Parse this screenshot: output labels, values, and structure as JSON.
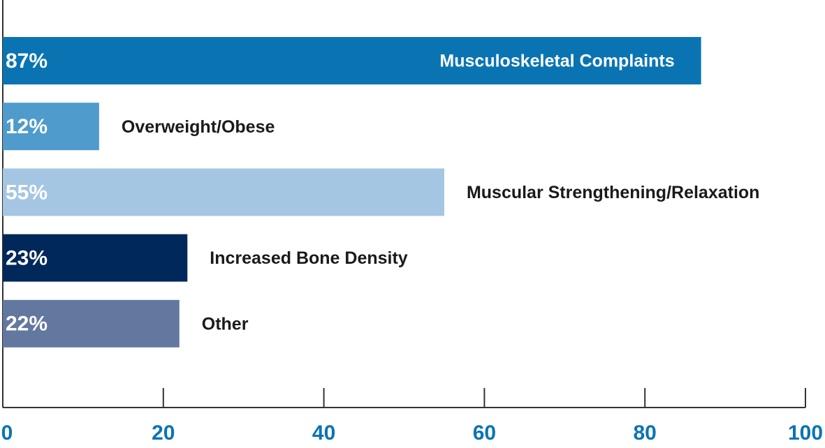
{
  "chart_data": {
    "type": "barh",
    "categories": [
      "Musculoskeletal Complaints",
      "Overweight/Obese",
      "Muscular Strengthening/Relaxation",
      "Increased Bone Density",
      "Other"
    ],
    "values": [
      87,
      12,
      55,
      23,
      22
    ],
    "value_labels": [
      "87%",
      "12%",
      "55%",
      "23%",
      "22%"
    ],
    "colors": [
      "#0a74b3",
      "#4f9bcb",
      "#a4c6e2",
      "#00285a",
      "#63789f"
    ],
    "xlim": [
      0,
      100
    ],
    "xticks": [
      0,
      20,
      40,
      60,
      80,
      100
    ]
  }
}
